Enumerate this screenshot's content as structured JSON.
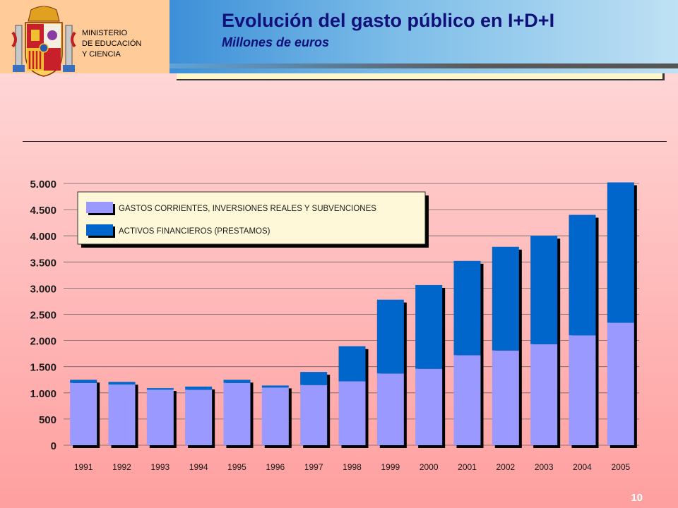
{
  "header": {
    "ministry_lines": [
      "MINISTERIO",
      "DE EDUCACIÓN",
      "Y CIENCIA"
    ],
    "title": "Evolución del gasto público en I+D+I",
    "subtitle": "Millones de euros"
  },
  "page_number": "10",
  "colors": {
    "series1": "#9999ff",
    "series2": "#0066cc",
    "shadow": "#000000",
    "title": "#10107a"
  },
  "chart_data": {
    "type": "bar",
    "stacked": true,
    "title": "",
    "xlabel": "",
    "ylabel": "",
    "ylim": [
      0,
      5000
    ],
    "yticks": [
      0,
      500,
      1000,
      1500,
      2000,
      2500,
      3000,
      3500,
      4000,
      4500,
      5000
    ],
    "ytick_labels": [
      "0",
      "500",
      "1.000",
      "1.500",
      "2.000",
      "2.500",
      "3.000",
      "3.500",
      "4.000",
      "4.500",
      "5.000"
    ],
    "grid": true,
    "legend_position": "top-left",
    "categories": [
      "1991",
      "1992",
      "1993",
      "1994",
      "1995",
      "1996",
      "1997",
      "1998",
      "1999",
      "2000",
      "2001",
      "2002",
      "2003",
      "2004",
      "2005"
    ],
    "series": [
      {
        "name": "GASTOS CORRIENTES, INVERSIONES REALES Y SUBVENCIONES",
        "color": "#9999ff",
        "values": [
          1190,
          1160,
          1060,
          1060,
          1190,
          1100,
          1150,
          1220,
          1370,
          1460,
          1720,
          1810,
          1930,
          2100,
          2340
        ]
      },
      {
        "name": "ACTIVOS FINANCIEROS (PRESTAMOS)",
        "color": "#0066cc",
        "values": [
          60,
          50,
          30,
          60,
          60,
          40,
          250,
          670,
          1410,
          1600,
          1800,
          1980,
          2070,
          2300,
          2680
        ]
      }
    ]
  }
}
